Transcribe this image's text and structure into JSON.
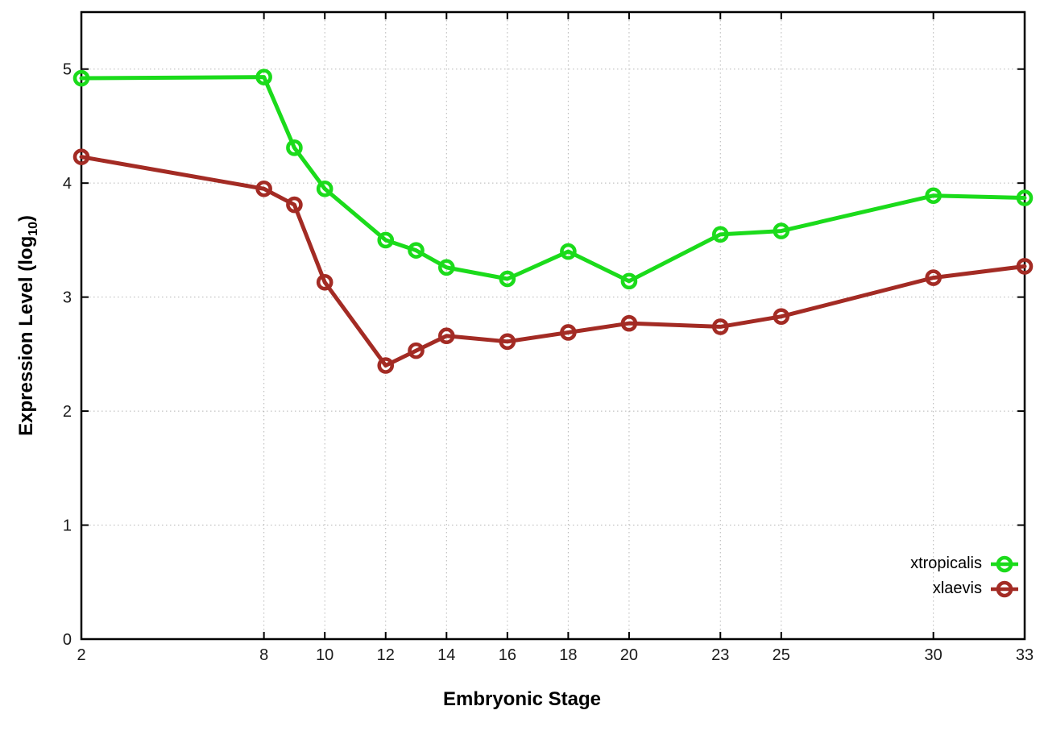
{
  "chart_data": {
    "type": "line",
    "title": "",
    "xlabel": "Embryonic Stage",
    "ylabel": "Expression Level (log10)",
    "ylabel_parts": {
      "pre": "Expression Level (log",
      "sub": "10",
      "post": ")"
    },
    "x": [
      2,
      8,
      9,
      10,
      12,
      13,
      14,
      16,
      18,
      20,
      23,
      25,
      30,
      33
    ],
    "x_ticks": [
      2,
      8,
      10,
      12,
      14,
      16,
      18,
      20,
      23,
      25,
      30,
      33
    ],
    "y_ticks": [
      0,
      1,
      2,
      3,
      4,
      5
    ],
    "xlim": [
      2,
      33
    ],
    "ylim": [
      0,
      5.5
    ],
    "grid": true,
    "legend_position": "inside-right-lower",
    "series": [
      {
        "name": "xtropicalis",
        "color": "#1bdb1b",
        "values": [
          4.92,
          4.93,
          4.31,
          3.95,
          3.5,
          3.41,
          3.26,
          3.16,
          3.4,
          3.14,
          3.55,
          3.58,
          3.89,
          3.87
        ]
      },
      {
        "name": "xlaevis",
        "color": "#a32b24",
        "values": [
          4.23,
          3.95,
          3.81,
          3.13,
          2.4,
          2.53,
          2.66,
          2.61,
          2.69,
          2.77,
          2.74,
          2.83,
          3.17,
          3.27
        ]
      }
    ],
    "style": {
      "grid_color": "#b5b5b5",
      "axis_color": "#000000",
      "tick_label_color": "#1a1a1a"
    }
  }
}
